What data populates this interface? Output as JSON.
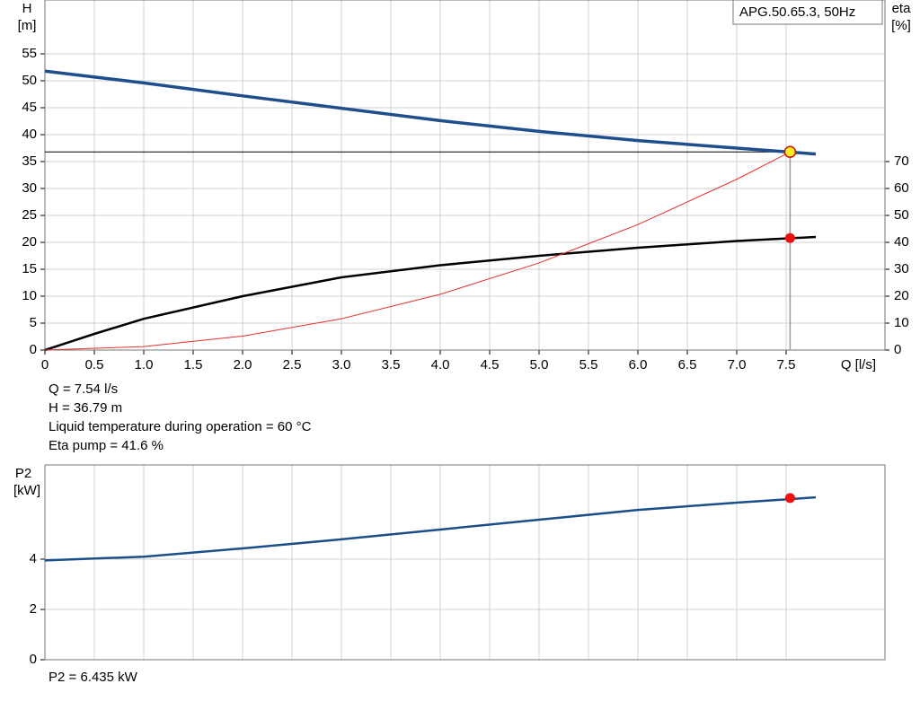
{
  "chart_data": [
    {
      "type": "line",
      "label": "APG.50.65.3, 50Hz",
      "ylabel": "H",
      "yunit": "[m]",
      "y2label": "eta",
      "y2unit": "[%]",
      "xlabel": "Q [l/s]",
      "xlim": [
        0,
        8.5
      ],
      "ylim": [
        0,
        65
      ],
      "y2lim": [
        0,
        130
      ],
      "grid": true,
      "xticks": [
        0,
        0.5,
        {
          "value": 1,
          "label": "1.0"
        },
        1.5,
        {
          "value": 2,
          "label": "2.0"
        },
        2.5,
        {
          "value": 3,
          "label": "3.0"
        },
        3.5,
        {
          "value": 4,
          "label": "4.0"
        },
        4.5,
        {
          "value": 5,
          "label": "5.0"
        },
        5.5,
        {
          "value": 6,
          "label": "6.0"
        },
        6.5,
        {
          "value": 7,
          "label": "7.0"
        },
        7.5
      ],
      "yticks": [
        0,
        5,
        10,
        15,
        20,
        25,
        30,
        35,
        40,
        45,
        50,
        55
      ],
      "y2ticks": [
        0,
        10,
        20,
        30,
        40,
        50,
        60,
        70
      ],
      "series": [
        {
          "color": "#1f4e8c",
          "width": 3.5,
          "x": [
            0,
            1,
            2,
            3,
            4,
            5,
            6,
            7,
            7.8
          ],
          "values": [
            51.8,
            49.6,
            47.2,
            44.9,
            42.6,
            40.6,
            38.9,
            37.5,
            36.4
          ]
        },
        {
          "color": "#000000",
          "width": 2.5,
          "axis": "y2",
          "x": [
            0,
            0.5,
            1,
            2,
            3,
            4,
            5,
            6,
            7,
            7.8
          ],
          "values": [
            0,
            6,
            11.6,
            20,
            27,
            31.5,
            35,
            38,
            40.5,
            42
          ]
        },
        {
          "color": "#e53030",
          "width": 1,
          "x": [
            0,
            1,
            2,
            3,
            4,
            5,
            6,
            7,
            7.54
          ],
          "values": [
            0,
            0.65,
            2.59,
            5.82,
            10.35,
            16.18,
            23.3,
            31.71,
            36.79
          ]
        }
      ],
      "operating_point": {
        "x": 7.54,
        "y": 36.79,
        "y2": 41.6
      },
      "annotations": [
        "Q = 7.54 l/s",
        "H = 36.79 m",
        "Liquid temperature during operation = 60 °C",
        "Eta pump = 41.6 %"
      ]
    },
    {
      "type": "line",
      "ylabel": "P2",
      "yunit": "[kW]",
      "xlim": [
        0,
        8.5
      ],
      "ylim": [
        0,
        7.75
      ],
      "grid": true,
      "yticks": [
        0,
        2,
        4
      ],
      "series": [
        {
          "color": "#1a4f8a",
          "width": 2.5,
          "x": [
            0,
            1,
            2,
            3,
            4,
            5,
            6,
            7,
            7.8
          ],
          "values": [
            3.95,
            4.1,
            4.43,
            4.79,
            5.18,
            5.57,
            5.96,
            6.25,
            6.46
          ]
        }
      ],
      "operating_point": {
        "x": 7.54,
        "y": 6.435
      },
      "annotations": [
        "P2 = 6.435 kW"
      ]
    }
  ]
}
